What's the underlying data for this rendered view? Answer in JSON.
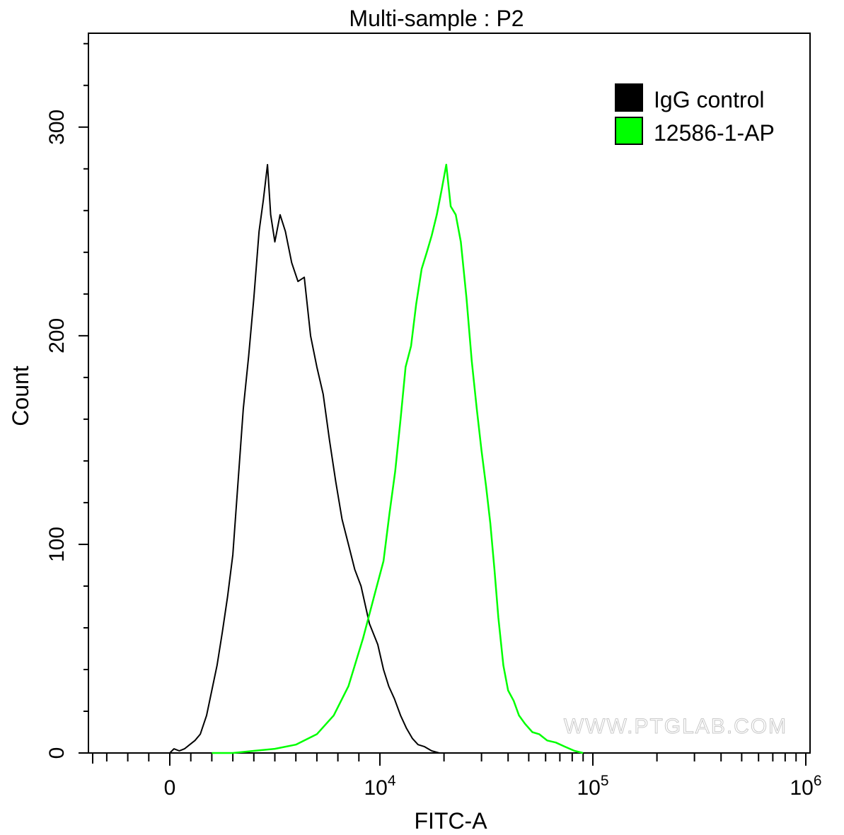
{
  "chart_data": {
    "type": "line",
    "title": "Multi-sample : P2",
    "xlabel": "FITC-A",
    "ylabel": "Count",
    "x_scale": "biexponential",
    "xlim": [
      -4000,
      1000000
    ],
    "ylim": [
      0,
      345
    ],
    "x_ticks": [
      {
        "value": 0,
        "label": "0",
        "sup": ""
      },
      {
        "value": 10000,
        "label": "10",
        "sup": "4"
      },
      {
        "value": 100000,
        "label": "10",
        "sup": "5"
      },
      {
        "value": 1000000,
        "label": "10",
        "sup": "6"
      }
    ],
    "y_ticks": [
      0,
      100,
      200,
      300
    ],
    "grid": false,
    "legend_position": "top-right",
    "watermark": "WWW.PTGLAB.COM",
    "series": [
      {
        "name": "IgG control",
        "color": "#000000",
        "points": [
          [
            0,
            0
          ],
          [
            200,
            2
          ],
          [
            450,
            1
          ],
          [
            700,
            2
          ],
          [
            950,
            4
          ],
          [
            1200,
            6
          ],
          [
            1450,
            9
          ],
          [
            1750,
            18
          ],
          [
            2000,
            30
          ],
          [
            2250,
            42
          ],
          [
            2500,
            58
          ],
          [
            2750,
            75
          ],
          [
            3000,
            95
          ],
          [
            3250,
            130
          ],
          [
            3500,
            165
          ],
          [
            3750,
            190
          ],
          [
            4000,
            218
          ],
          [
            4250,
            250
          ],
          [
            4450,
            265
          ],
          [
            4650,
            282
          ],
          [
            4800,
            258
          ],
          [
            5000,
            245
          ],
          [
            5250,
            258
          ],
          [
            5500,
            250
          ],
          [
            5800,
            235
          ],
          [
            6100,
            226
          ],
          [
            6400,
            228
          ],
          [
            6700,
            200
          ],
          [
            7000,
            185
          ],
          [
            7300,
            172
          ],
          [
            7600,
            150
          ],
          [
            7900,
            130
          ],
          [
            8200,
            112
          ],
          [
            8500,
            100
          ],
          [
            8800,
            88
          ],
          [
            9100,
            80
          ],
          [
            9500,
            62
          ],
          [
            9900,
            52
          ],
          [
            10400,
            40
          ],
          [
            11000,
            32
          ],
          [
            11700,
            26
          ],
          [
            12500,
            18
          ],
          [
            13300,
            12
          ],
          [
            14200,
            7
          ],
          [
            15100,
            4
          ],
          [
            16200,
            3
          ],
          [
            17500,
            1
          ],
          [
            19000,
            0
          ]
        ]
      },
      {
        "name": "12586-1-AP",
        "color": "#00ff00",
        "points": [
          [
            2000,
            0
          ],
          [
            3000,
            0
          ],
          [
            4000,
            1
          ],
          [
            5000,
            2
          ],
          [
            6000,
            4
          ],
          [
            7000,
            9
          ],
          [
            7800,
            18
          ],
          [
            8500,
            32
          ],
          [
            9200,
            55
          ],
          [
            9800,
            78
          ],
          [
            10400,
            92
          ],
          [
            11100,
            115
          ],
          [
            11800,
            135
          ],
          [
            12500,
            160
          ],
          [
            13200,
            185
          ],
          [
            14000,
            195
          ],
          [
            14800,
            215
          ],
          [
            15700,
            232
          ],
          [
            16600,
            240
          ],
          [
            17500,
            248
          ],
          [
            18500,
            258
          ],
          [
            19500,
            270
          ],
          [
            20500,
            282
          ],
          [
            21500,
            262
          ],
          [
            22700,
            258
          ],
          [
            24000,
            245
          ],
          [
            25500,
            218
          ],
          [
            27000,
            188
          ],
          [
            28500,
            165
          ],
          [
            30000,
            145
          ],
          [
            31500,
            128
          ],
          [
            33000,
            110
          ],
          [
            34500,
            88
          ],
          [
            36000,
            65
          ],
          [
            38000,
            42
          ],
          [
            40000,
            30
          ],
          [
            42500,
            25
          ],
          [
            45000,
            18
          ],
          [
            48000,
            14
          ],
          [
            52000,
            10
          ],
          [
            56000,
            9
          ],
          [
            61000,
            6
          ],
          [
            67000,
            5
          ],
          [
            74000,
            3
          ],
          [
            82000,
            1
          ],
          [
            90000,
            0
          ]
        ]
      }
    ]
  }
}
